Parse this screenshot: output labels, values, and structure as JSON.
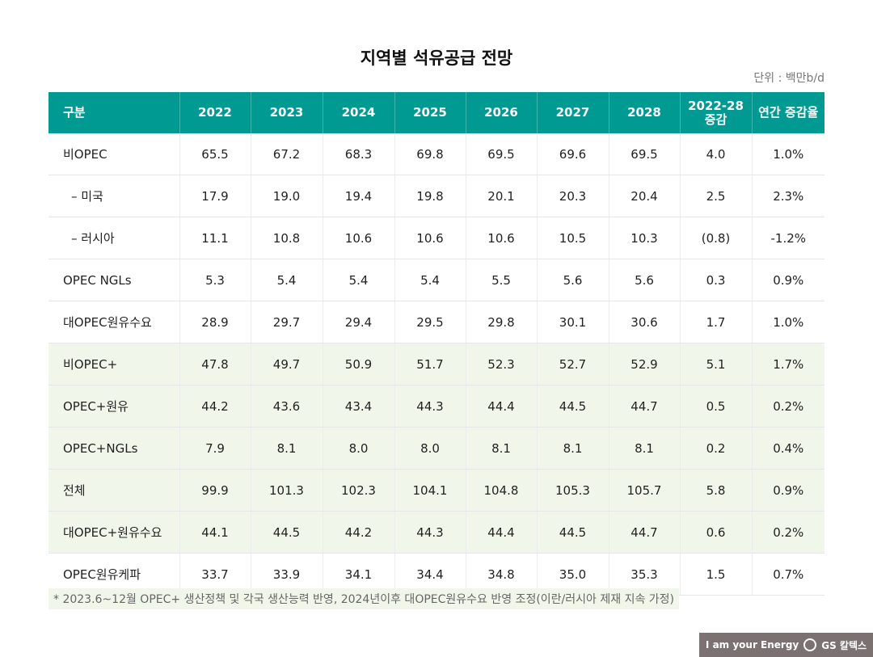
{
  "title": "지역별 석유공급 전망",
  "unit": "단위 : 백만b/d",
  "headers": [
    "구분",
    "2022",
    "2023",
    "2024",
    "2025",
    "2026",
    "2027",
    "2028",
    "2022-28 증감",
    "연간 증감율"
  ],
  "rows": [
    {
      "label": "비OPEC",
      "values": [
        "65.5",
        "67.2",
        "68.3",
        "69.8",
        "69.5",
        "69.6",
        "69.5",
        "4.0",
        "1.0%"
      ]
    },
    {
      "label": "– 미국",
      "values": [
        "17.9",
        "19.0",
        "19.4",
        "19.8",
        "20.1",
        "20.3",
        "20.4",
        "2.5",
        "2.3%"
      ]
    },
    {
      "label": "– 러시아",
      "values": [
        "11.1",
        "10.8",
        "10.6",
        "10.6",
        "10.6",
        "10.5",
        "10.3",
        "(0.8)",
        "-1.2%"
      ]
    },
    {
      "label": "OPEC NGLs",
      "values": [
        "5.3",
        "5.4",
        "5.4",
        "5.4",
        "5.5",
        "5.6",
        "5.6",
        "0.3",
        "0.9%"
      ]
    },
    {
      "label": "대OPEC원유수요",
      "values": [
        "28.9",
        "29.7",
        "29.4",
        "29.5",
        "29.8",
        "30.1",
        "30.6",
        "1.7",
        "1.0%"
      ]
    },
    {
      "label": "비OPEC+",
      "values": [
        "47.8",
        "49.7",
        "50.9",
        "51.7",
        "52.3",
        "52.7",
        "52.9",
        "5.1",
        "1.7%"
      ]
    },
    {
      "label": "OPEC+원유",
      "values": [
        "44.2",
        "43.6",
        "43.4",
        "44.3",
        "44.4",
        "44.5",
        "44.7",
        "0.5",
        "0.2%"
      ]
    },
    {
      "label": "OPEC+NGLs",
      "values": [
        "7.9",
        "8.1",
        "8.0",
        "8.0",
        "8.1",
        "8.1",
        "8.1",
        "0.2",
        "0.4%"
      ]
    },
    {
      "label": "전체",
      "values": [
        "99.9",
        "101.3",
        "102.3",
        "104.1",
        "104.8",
        "105.3",
        "105.7",
        "5.8",
        "0.9%"
      ]
    },
    {
      "label": "대OPEC+원유수요",
      "values": [
        "44.1",
        "44.5",
        "44.2",
        "44.3",
        "44.4",
        "44.5",
        "44.7",
        "0.6",
        "0.2%"
      ]
    },
    {
      "label": "OPEC원유케파",
      "values": [
        "33.7",
        "33.9",
        "34.1",
        "34.4",
        "34.8",
        "35.0",
        "35.3",
        "1.5",
        "0.7%"
      ]
    }
  ],
  "note": "* 2023.6~12월 OPEC+ 생산정책 및 각국 생산능력 반영, 2024년이후 대OPEC원유수요 반영 조정(이란/러시아 제재 지속 가정)",
  "logo": {
    "slogan": "I am your Energy",
    "brand": "GS 칼텍스"
  },
  "colors": {
    "header": "#009a93",
    "highlight_rows": "#f1f6ea"
  }
}
